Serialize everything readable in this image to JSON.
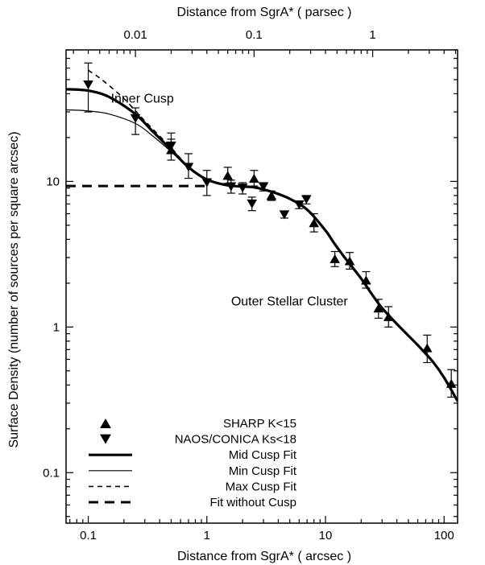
{
  "chart_data": {
    "type": "scatter",
    "xscale": "log",
    "yscale": "log",
    "xlim": [
      0.065,
      130
    ],
    "ylim": [
      0.045,
      80
    ],
    "xlabel": "Distance from SgrA* ( arcsec )",
    "ylabel": "Surface Density (number of sources per square arcsec)",
    "top_axis_label": "Distance from SgrA* ( parsec )",
    "xticks": [
      {
        "value": 0.1,
        "label": "0.1"
      },
      {
        "value": 1,
        "label": "1"
      },
      {
        "value": 10,
        "label": "10"
      },
      {
        "value": 100,
        "label": "100"
      }
    ],
    "yticks": [
      {
        "value": 0.1,
        "label": "0.1"
      },
      {
        "value": 1,
        "label": "1"
      },
      {
        "value": 10,
        "label": "10"
      }
    ],
    "top_ticks": [
      {
        "arcsec": 0.25,
        "label": "0.01"
      },
      {
        "arcsec": 2.5,
        "label": "0.1"
      },
      {
        "arcsec": 25,
        "label": "1"
      }
    ],
    "annotations": [
      {
        "text": "Inner Cusp",
        "x": 0.155,
        "y": 37
      },
      {
        "text": "Outer Stellar Cluster",
        "x": 1.6,
        "y": 1.5
      }
    ],
    "series": [
      {
        "name": "SHARP K<15",
        "marker": "triangle-up",
        "points": [
          {
            "x": 0.5,
            "y": 16.5,
            "lo": 14.0,
            "hi": 19.5
          },
          {
            "x": 1.5,
            "y": 11.0,
            "lo": 9.7,
            "hi": 12.5
          },
          {
            "x": 2.5,
            "y": 10.5,
            "lo": 9.3,
            "hi": 11.9
          },
          {
            "x": 3.5,
            "y": 8.0,
            "lo": 7.4,
            "hi": 8.6
          },
          {
            "x": 8.0,
            "y": 5.2,
            "lo": 4.5,
            "hi": 6.0
          },
          {
            "x": 12.0,
            "y": 2.95,
            "lo": 2.6,
            "hi": 3.3
          },
          {
            "x": 16.0,
            "y": 2.85,
            "lo": 2.5,
            "hi": 3.25
          },
          {
            "x": 22.0,
            "y": 2.1,
            "lo": 1.85,
            "hi": 2.4
          },
          {
            "x": 28.0,
            "y": 1.35,
            "lo": 1.15,
            "hi": 1.55
          },
          {
            "x": 34.0,
            "y": 1.18,
            "lo": 1.0,
            "hi": 1.38
          },
          {
            "x": 72.0,
            "y": 0.72,
            "lo": 0.57,
            "hi": 0.88
          },
          {
            "x": 115.0,
            "y": 0.41,
            "lo": 0.33,
            "hi": 0.51
          }
        ]
      },
      {
        "name": "NAOS/CONICA Ks<18",
        "marker": "triangle-down",
        "points": [
          {
            "x": 0.1,
            "y": 46.0,
            "lo": 30.0,
            "hi": 65.0
          },
          {
            "x": 0.25,
            "y": 27.0,
            "lo": 21.0,
            "hi": 32.0
          },
          {
            "x": 0.5,
            "y": 17.5,
            "lo": 15.5,
            "hi": 21.5
          },
          {
            "x": 0.7,
            "y": 12.5,
            "lo": 10.5,
            "hi": 15.5
          },
          {
            "x": 1.0,
            "y": 9.8,
            "lo": 8.0,
            "hi": 11.9
          },
          {
            "x": 1.6,
            "y": 9.2,
            "lo": 8.3,
            "hi": 10.2
          },
          {
            "x": 2.0,
            "y": 9.0,
            "lo": 8.2,
            "hi": 9.8
          },
          {
            "x": 2.4,
            "y": 7.0,
            "lo": 6.3,
            "hi": 7.8
          },
          {
            "x": 3.0,
            "y": 9.2,
            "lo": 8.6,
            "hi": 9.8
          },
          {
            "x": 4.5,
            "y": 5.9,
            "lo": 5.6,
            "hi": 6.2
          },
          {
            "x": 6.0,
            "y": 6.9,
            "lo": 6.5,
            "hi": 7.3
          },
          {
            "x": 6.9,
            "y": 7.5,
            "lo": 7.0,
            "hi": 8.0
          }
        ]
      }
    ],
    "fits": [
      {
        "name": "Mid Cusp Fit",
        "style": "thick",
        "points": [
          [
            0.065,
            43.0
          ],
          [
            0.1,
            42.0
          ],
          [
            0.15,
            38.0
          ],
          [
            0.25,
            29.0
          ],
          [
            0.35,
            22.0
          ],
          [
            0.5,
            16.5
          ],
          [
            0.7,
            12.5
          ],
          [
            1.0,
            10.3
          ],
          [
            1.5,
            9.4
          ],
          [
            2.5,
            9.1
          ],
          [
            3.5,
            8.5
          ],
          [
            5.0,
            7.6
          ],
          [
            7.0,
            6.4
          ],
          [
            10.0,
            4.6
          ],
          [
            12.0,
            3.7
          ],
          [
            15.0,
            2.9
          ],
          [
            20.0,
            2.15
          ],
          [
            25.0,
            1.65
          ],
          [
            30.0,
            1.35
          ],
          [
            40.0,
            1.05
          ],
          [
            60.0,
            0.75
          ],
          [
            80.0,
            0.58
          ],
          [
            100.0,
            0.45
          ],
          [
            130.0,
            0.31
          ]
        ]
      },
      {
        "name": "Min Cusp Fit",
        "style": "thin",
        "points": [
          [
            0.065,
            31.0
          ],
          [
            0.1,
            30.5
          ],
          [
            0.15,
            29.0
          ],
          [
            0.25,
            25.0
          ],
          [
            0.35,
            20.5
          ],
          [
            0.5,
            16.0
          ],
          [
            0.7,
            12.4
          ],
          [
            1.0,
            10.3
          ],
          [
            1.5,
            9.4
          ]
        ]
      },
      {
        "name": "Max Cusp Fit",
        "style": "dashed",
        "points": [
          [
            0.1,
            58.0
          ],
          [
            0.13,
            50.0
          ],
          [
            0.2,
            37.0
          ],
          [
            0.3,
            26.0
          ],
          [
            0.5,
            17.0
          ],
          [
            0.7,
            12.6
          ],
          [
            1.0,
            10.3
          ]
        ]
      },
      {
        "name": "Fit without Cusp",
        "style": "long-dashed",
        "points": [
          [
            0.065,
            9.3
          ],
          [
            0.3,
            9.3
          ],
          [
            1.0,
            9.3
          ]
        ]
      }
    ],
    "legend": {
      "position": "bottom-left",
      "entries": [
        {
          "label": "SHARP K<15",
          "kind": "triangle-up"
        },
        {
          "label": "NAOS/CONICA Ks<18",
          "kind": "triangle-down"
        },
        {
          "label": "Mid Cusp Fit",
          "kind": "thick"
        },
        {
          "label": "Min Cusp Fit",
          "kind": "thin"
        },
        {
          "label": "Max Cusp Fit",
          "kind": "dashed"
        },
        {
          "label": "Fit without Cusp",
          "kind": "long-dashed"
        }
      ]
    }
  }
}
